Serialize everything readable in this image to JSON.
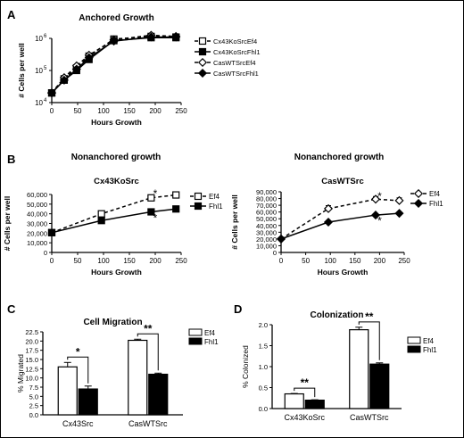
{
  "figure": {
    "panels": {
      "A": {
        "letter": "A",
        "title": "Anchored Growth"
      },
      "B": {
        "letter": "B",
        "heading_left": "Nonanchored growth",
        "heading_right": "Nonanchored growth"
      },
      "C": {
        "letter": "C",
        "title": "Cell Migration"
      },
      "D": {
        "letter": "D",
        "title": "Colonization"
      }
    }
  },
  "chart_data": [
    {
      "id": "A",
      "type": "line",
      "title": "Anchored Growth",
      "xlabel": "Hours Growth",
      "ylabel": "# Cells per well",
      "xlim": [
        0,
        250
      ],
      "xticks": [
        0,
        50,
        100,
        150,
        200,
        250
      ],
      "ylog": true,
      "ylim_exp": [
        4,
        6
      ],
      "ytick_labels": [
        {
          "base": "10",
          "exp": "4"
        },
        {
          "base": "10",
          "exp": "5"
        },
        {
          "base": "10",
          "exp": "6"
        }
      ],
      "legend_position": "right",
      "series": [
        {
          "name": "Cx43KoSrcEf4",
          "marker": "square-open",
          "dash": true,
          "x": [
            0,
            24,
            48,
            72,
            120,
            192,
            240
          ],
          "y": [
            20000,
            55000,
            120000,
            280000,
            950000,
            1150000,
            1100000
          ]
        },
        {
          "name": "Cx43KoSrcFhl1",
          "marker": "square-filled",
          "dash": false,
          "x": [
            0,
            24,
            48,
            72,
            120,
            192,
            240
          ],
          "y": [
            20000,
            50000,
            100000,
            220000,
            850000,
            1050000,
            1050000
          ]
        },
        {
          "name": "CasWTSrcEf4",
          "marker": "diamond-open",
          "dash": true,
          "x": [
            0,
            24,
            48,
            72,
            120,
            192,
            240
          ],
          "y": [
            20000,
            60000,
            140000,
            300000,
            900000,
            1250000,
            1150000
          ]
        },
        {
          "name": "CasWTSrcFhl1",
          "marker": "diamond-filled",
          "dash": false,
          "x": [
            0,
            24,
            48,
            72,
            120,
            192,
            240
          ],
          "y": [
            20000,
            50000,
            110000,
            250000,
            820000,
            1100000,
            1100000
          ]
        }
      ]
    },
    {
      "id": "B1",
      "type": "line",
      "title": "Cx43KoSrc",
      "xlabel": "Hours Growth",
      "ylabel": "# Cells per well",
      "xlim": [
        0,
        250
      ],
      "xticks": [
        0,
        50,
        100,
        150,
        200,
        250
      ],
      "ylim": [
        0,
        60000
      ],
      "yticks": [
        0,
        10000,
        20000,
        30000,
        40000,
        50000,
        60000
      ],
      "ytick_labels": [
        "0",
        "10,000",
        "20,000",
        "30,000",
        "40,000",
        "50,000",
        "60,000"
      ],
      "legend_position": "right",
      "series": [
        {
          "name": "Ef4",
          "marker": "square-open",
          "dash": true,
          "x": [
            0,
            96,
            192,
            240
          ],
          "y": [
            20500,
            40000,
            56500,
            59500
          ],
          "err": [
            1000,
            1500,
            2000,
            2500
          ]
        },
        {
          "name": "Fhl1",
          "marker": "square-filled",
          "dash": false,
          "x": [
            0,
            96,
            192,
            240
          ],
          "y": [
            20500,
            33000,
            42000,
            45000
          ],
          "err": [
            800,
            1000,
            1500,
            1000
          ]
        }
      ],
      "annotations": [
        {
          "text": "*",
          "x": 200,
          "y": 62000
        },
        {
          "text": "*",
          "x": 200,
          "y": 36500
        }
      ]
    },
    {
      "id": "B2",
      "type": "line",
      "title": "CasWTSrc",
      "xlabel": "Hours Growth",
      "ylabel": "# Cells per well",
      "xlim": [
        0,
        250
      ],
      "xticks": [
        0,
        50,
        100,
        150,
        200,
        250
      ],
      "ylim": [
        0,
        90000
      ],
      "yticks": [
        0,
        10000,
        20000,
        30000,
        40000,
        50000,
        60000,
        70000,
        80000,
        90000
      ],
      "ytick_labels": [
        "0",
        "10,000",
        "20,000",
        "30,000",
        "40,000",
        "50,000",
        "60,000",
        "70,000",
        "80,000",
        "90,000"
      ],
      "legend_position": "right",
      "series": [
        {
          "name": "Ef4",
          "marker": "diamond-open",
          "dash": true,
          "x": [
            0,
            96,
            192,
            240
          ],
          "y": [
            20000,
            65000,
            79000,
            77000
          ],
          "err": [
            1000,
            4500,
            4000,
            4000
          ]
        },
        {
          "name": "Fhl1",
          "marker": "diamond-filled",
          "dash": false,
          "x": [
            0,
            96,
            192,
            240
          ],
          "y": [
            20000,
            45000,
            55500,
            58000
          ],
          "err": [
            800,
            1500,
            2000,
            2000
          ]
        }
      ],
      "annotations": [
        {
          "text": "*",
          "x": 200,
          "y": 85000
        },
        {
          "text": "*",
          "x": 200,
          "y": 48000
        }
      ]
    },
    {
      "id": "C",
      "type": "bar",
      "title": "Cell Migration",
      "ylabel": "% Migrated",
      "ylim": [
        0,
        22.5
      ],
      "yticks": [
        0,
        2.5,
        5,
        7.5,
        10,
        12.5,
        15,
        17.5,
        20,
        22.5
      ],
      "ytick_labels": [
        "0.0",
        "2.5",
        "5.0",
        "7.5",
        "10.0",
        "12.5",
        "15.0",
        "17.5",
        "20.0",
        "22.5"
      ],
      "categories": [
        "Cx43Src",
        "CasWTSrc"
      ],
      "legend_position": "right",
      "series": [
        {
          "name": "Ef4",
          "fill": "white",
          "values": [
            13.0,
            20.2
          ],
          "err": [
            1.2,
            0.3
          ]
        },
        {
          "name": "Fhl1",
          "fill": "black",
          "values": [
            7.0,
            11.0
          ],
          "err": [
            0.8,
            0.3
          ]
        }
      ],
      "significance": [
        {
          "text": "*",
          "category": 0
        },
        {
          "text": "**",
          "category": 1
        }
      ]
    },
    {
      "id": "D",
      "type": "bar",
      "title": "Colonization",
      "ylabel": "% Colonized",
      "ylim": [
        0,
        2.0
      ],
      "yticks": [
        0,
        0.5,
        1.0,
        1.5,
        2.0
      ],
      "ytick_labels": [
        "0.0",
        "0.5",
        "1.0",
        "1.5",
        "2.0"
      ],
      "categories": [
        "Cx43KoSrc",
        "CasWTSrc"
      ],
      "legend_position": "right",
      "series": [
        {
          "name": "Ef4",
          "fill": "white",
          "values": [
            0.35,
            1.88
          ],
          "err": [
            0.01,
            0.06
          ]
        },
        {
          "name": "Fhl1",
          "fill": "black",
          "values": [
            0.2,
            1.06
          ],
          "err": [
            0.01,
            0.03
          ]
        }
      ],
      "significance": [
        {
          "text": "**",
          "category": 0
        },
        {
          "text": "**",
          "category": 1
        }
      ]
    }
  ]
}
